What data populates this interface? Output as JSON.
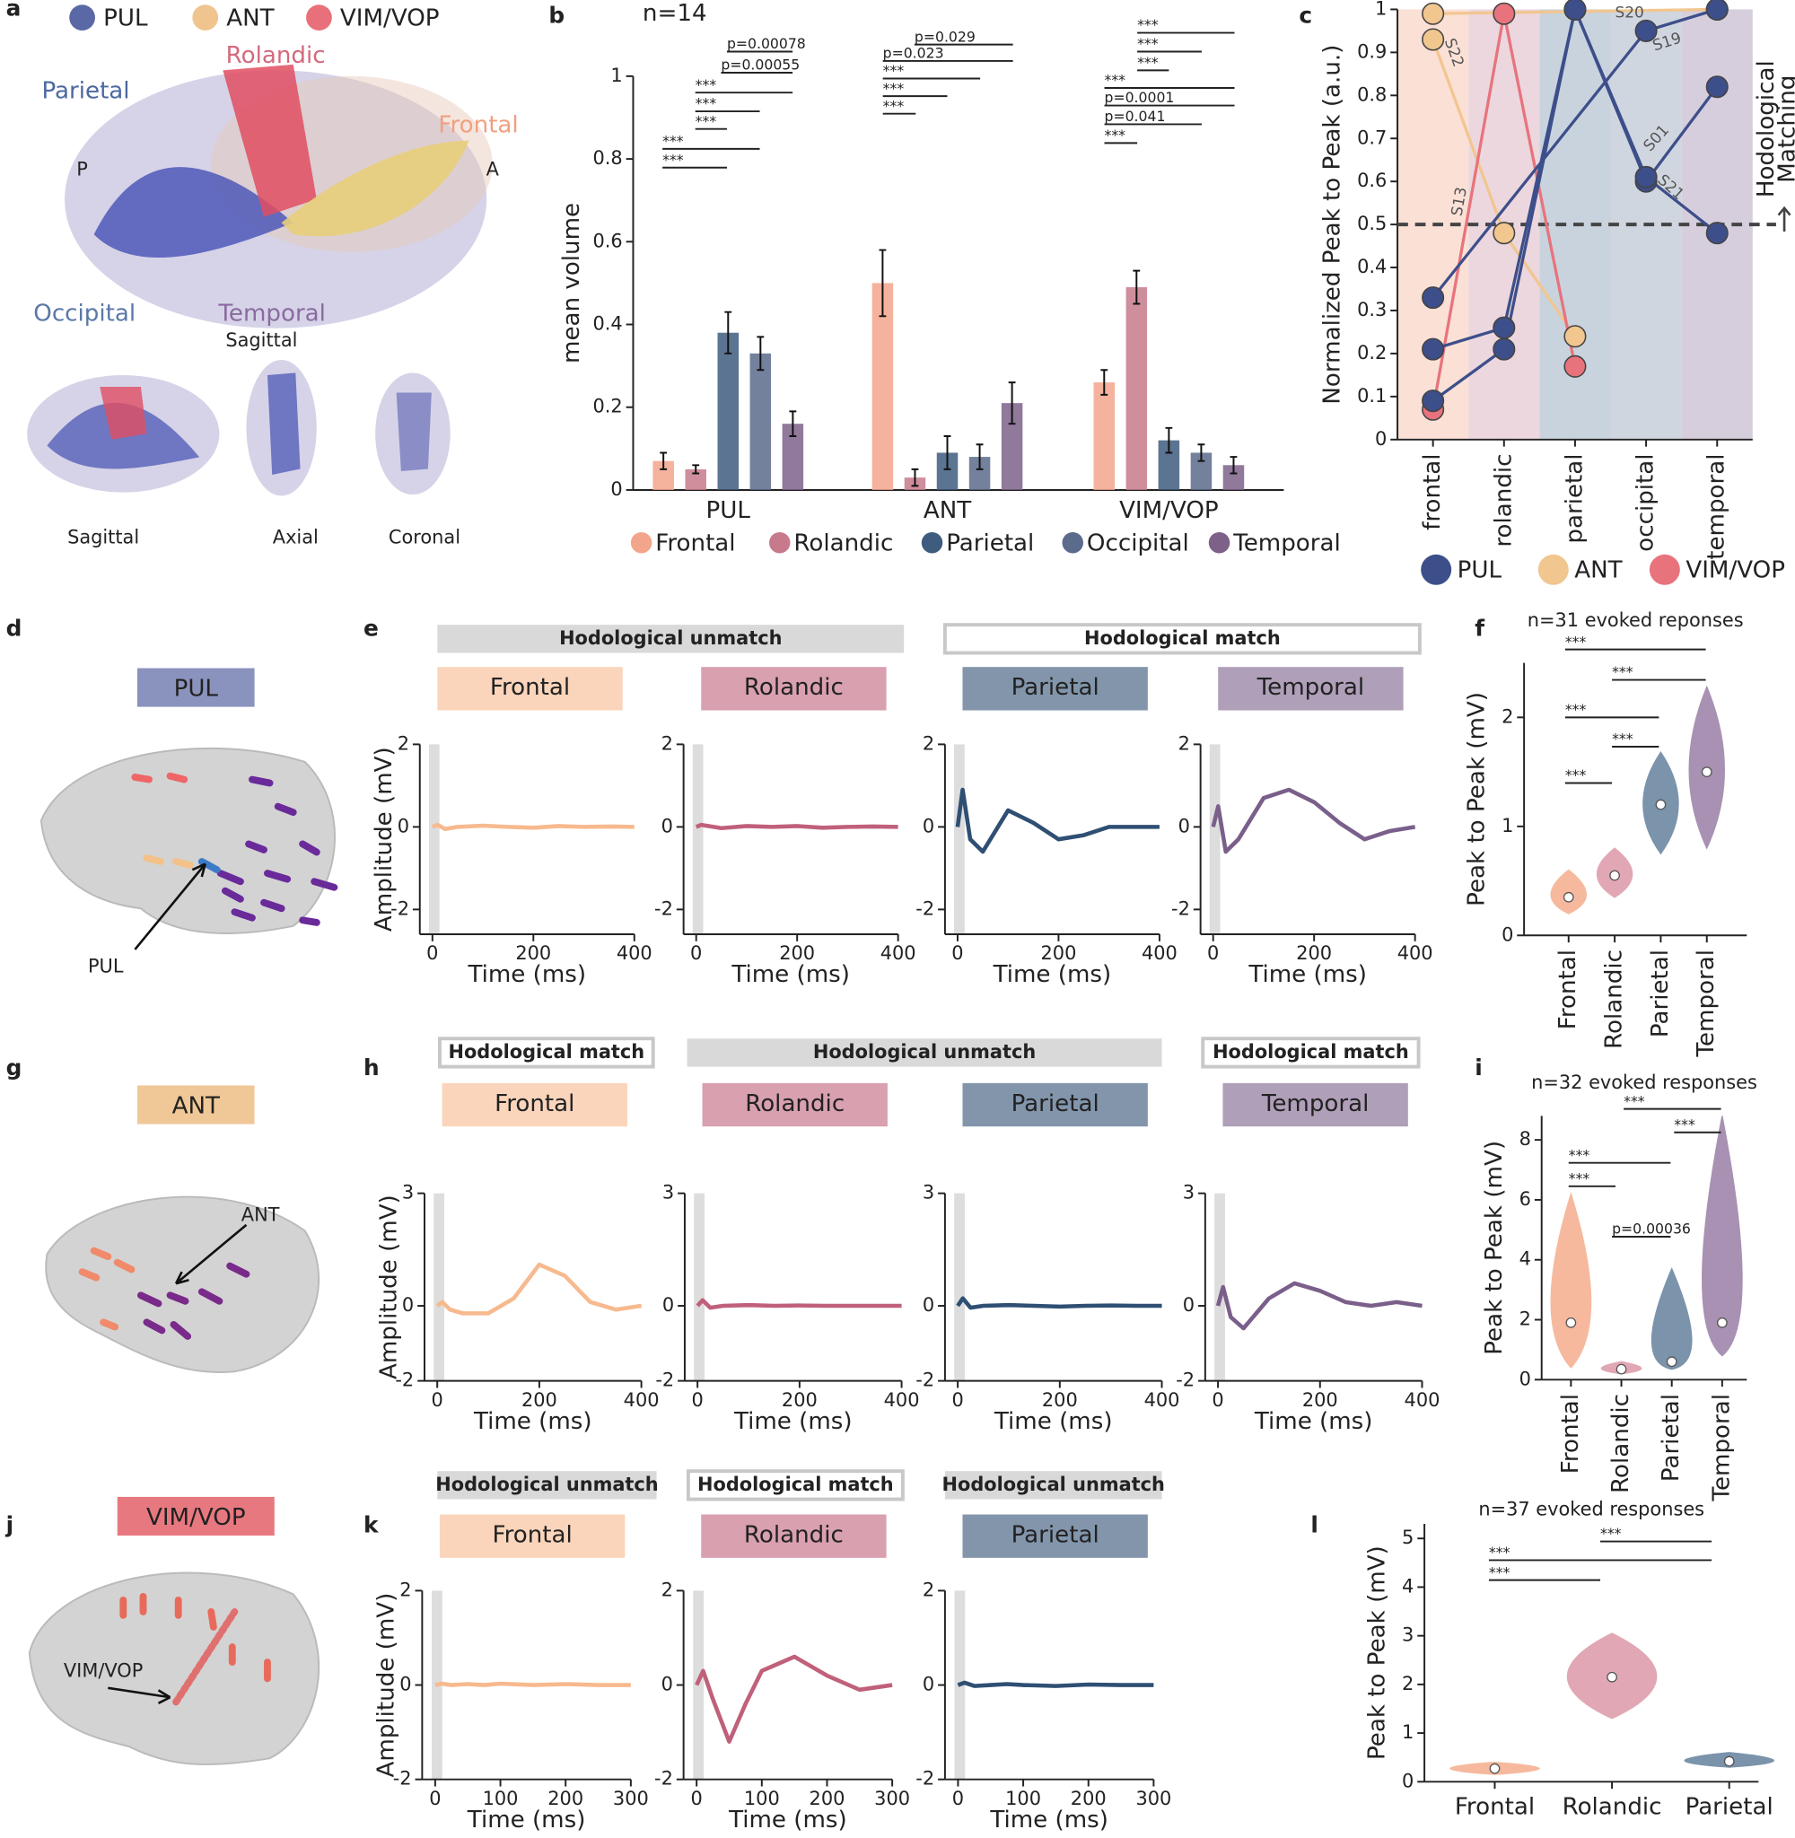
{
  "figure": {
    "letters": [
      "a",
      "b",
      "c",
      "d",
      "e",
      "f",
      "g",
      "h",
      "i",
      "j",
      "k",
      "l"
    ],
    "a": {
      "legend": [
        {
          "name": "PUL",
          "color": "#5b68a6"
        },
        {
          "name": "ANT",
          "color": "#f0c48e"
        },
        {
          "name": "VIM/VOP",
          "color": "#e8707a"
        }
      ],
      "regions": [
        "Rolandic",
        "Parietal",
        "Frontal",
        "Occipital",
        "Temporal"
      ],
      "orient": [
        "P",
        "A"
      ],
      "views": [
        "Sagittal",
        "Sagittal",
        "Axial",
        "Coronal"
      ]
    },
    "d": {
      "nucleus": "PUL",
      "pointer": "PUL"
    },
    "g": {
      "nucleus": "ANT",
      "pointer": "ANT"
    },
    "j": {
      "nucleus": "VIM/VOP",
      "pointer": "VIM/VOP"
    },
    "headers": [
      {
        "text": "Hodological unmatch",
        "match": false
      },
      {
        "text": "Hodological match",
        "match": true
      },
      {
        "text": "Hodological match",
        "match": true
      },
      {
        "text": "Hodological unmatch",
        "match": false
      },
      {
        "text": "Hodological match",
        "match": true
      },
      {
        "text": "Hodological unmatch",
        "match": false
      },
      {
        "text": "Hodological match",
        "match": true
      },
      {
        "text": "Hodological unmatch",
        "match": false
      }
    ]
  },
  "chart_data": [
    {
      "type": "bar",
      "title": "n=14",
      "categories": [
        "PUL",
        "ANT",
        "VIM/VOP"
      ],
      "ylabel": "mean volume",
      "ylim": [
        0,
        1
      ],
      "yticks": [
        0,
        0.2,
        0.4,
        0.6,
        0.8,
        1
      ],
      "series": [
        {
          "name": "Frontal",
          "color": "#f3a58b",
          "values": [
            0.07,
            0.5,
            0.26
          ],
          "errors": [
            0.02,
            0.08,
            0.03
          ]
        },
        {
          "name": "Rolandic",
          "color": "#c77a8b",
          "values": [
            0.05,
            0.03,
            0.49
          ],
          "errors": [
            0.01,
            0.02,
            0.04
          ]
        },
        {
          "name": "Parietal",
          "color": "#3e5c7e",
          "values": [
            0.38,
            0.09,
            0.12
          ],
          "errors": [
            0.05,
            0.04,
            0.03
          ]
        },
        {
          "name": "Occipital",
          "color": "#5b6b8c",
          "values": [
            0.33,
            0.08,
            0.09
          ],
          "errors": [
            0.04,
            0.03,
            0.02
          ]
        },
        {
          "name": "Temporal",
          "color": "#7d6189",
          "values": [
            0.16,
            0.21,
            0.06
          ],
          "errors": [
            0.03,
            0.05,
            0.02
          ]
        }
      ],
      "annotations": [
        "***",
        "***",
        "***",
        "***",
        "***",
        "p=0.00055",
        "p=0.00078",
        "***",
        "***",
        "***",
        "p=0.023",
        "p=0.029",
        "***",
        "p=0.041",
        "p=0.0001",
        "***",
        "***",
        "***",
        "***"
      ]
    },
    {
      "type": "line",
      "ylabel": "Normalized Peak to Peak (a.u.)",
      "xlim": [
        -0.5,
        4.5
      ],
      "xticks": [
        {
          "value": 0,
          "label": "frontal"
        },
        {
          "value": 1,
          "label": "rolandic"
        },
        {
          "value": 2,
          "label": "parietal"
        },
        {
          "value": 3,
          "label": "occipital"
        },
        {
          "value": 4,
          "label": "temporal"
        }
      ],
      "ylim": [
        0,
        1
      ],
      "yticks": [
        0,
        0.1,
        0.2,
        0.3,
        0.4,
        0.5,
        0.6,
        0.7,
        0.8,
        0.9,
        1
      ],
      "bands": [
        "#fbe0d6",
        "#ecd7de",
        "#c9d3dd",
        "#d0d6df",
        "#d6cedd"
      ],
      "threshold": 0.5,
      "threshold_label": [
        "Hodological",
        "Matching"
      ],
      "legend": [
        {
          "name": "PUL",
          "color": "#3d4f8a"
        },
        {
          "name": "ANT",
          "color": "#f1c68f"
        },
        {
          "name": "VIM/VOP",
          "color": "#e8737d"
        }
      ],
      "series": [
        {
          "name": "S22",
          "color": "#f1c68f",
          "x": [
            0,
            1,
            2
          ],
          "values": [
            0.93,
            0.48,
            0.24
          ]
        },
        {
          "name": "S20",
          "color": "#f1c68f",
          "x": [
            0,
            4
          ],
          "values": [
            0.99,
            1
          ]
        },
        {
          "name": "S13",
          "color": "#e8737d",
          "x": [
            0,
            1,
            2
          ],
          "values": [
            0.07,
            0.99,
            0.17
          ]
        },
        {
          "name": "S19",
          "color": "#3d4f8a",
          "x": [
            0,
            3,
            4
          ],
          "values": [
            0.33,
            0.95,
            1
          ]
        },
        {
          "name": "S01",
          "color": "#3d4f8a",
          "x": [
            0,
            1,
            2,
            3,
            4
          ],
          "values": [
            0.21,
            0.26,
            1,
            0.6,
            0.82
          ]
        },
        {
          "name": "S21",
          "color": "#3d4f8a",
          "x": [
            0,
            1,
            2,
            3,
            4
          ],
          "values": [
            0.09,
            0.21,
            1,
            0.61,
            0.48
          ]
        }
      ]
    },
    {
      "type": "violin",
      "title": "n=31 evoked reponses",
      "ylabel": "Peak to Peak (mV)",
      "categories": [
        "Frontal",
        "Rolandic",
        "Parietal",
        "Temporal"
      ],
      "colors": [
        "#f3a27e",
        "#d78a9b",
        "#4f6f8f",
        "#8b6d99"
      ],
      "values": [
        0.35,
        0.55,
        1.2,
        1.5
      ],
      "min": [
        0.2,
        0.35,
        0.75,
        0.8
      ],
      "max": [
        0.6,
        0.8,
        1.68,
        2.28
      ],
      "ylim": [
        0,
        2.5
      ],
      "yticks": [
        0,
        1,
        2
      ],
      "annotations": [
        "***",
        "***",
        "***",
        "***",
        "***"
      ]
    },
    {
      "type": "violin",
      "title": "n=32 evoked responses",
      "ylabel": "Peak to Peak (mV)",
      "categories": [
        "Frontal",
        "Rolandic",
        "Parietal",
        "Temporal"
      ],
      "colors": [
        "#f3a27e",
        "#d78a9b",
        "#4f6f8f",
        "#8b6d99"
      ],
      "values": [
        1.9,
        0.35,
        0.6,
        1.9
      ],
      "min": [
        0.4,
        0.2,
        0.35,
        0.8
      ],
      "max": [
        6.2,
        0.6,
        3.7,
        8.8
      ],
      "ylim": [
        0,
        8.8
      ],
      "yticks": [
        0,
        2,
        4,
        6,
        8
      ],
      "annotations": [
        "***",
        "***",
        "***",
        "***",
        "p=0.00036"
      ]
    },
    {
      "type": "violin",
      "title": "n=37 evoked responses",
      "ylabel": "Peak to Peak (mV)",
      "categories": [
        "Frontal",
        "Rolandic",
        "Parietal"
      ],
      "colors": [
        "#f3a27e",
        "#d78a9b",
        "#4f6f8f"
      ],
      "values": [
        0.27,
        2.15,
        0.42
      ],
      "min": [
        0.15,
        1.3,
        0.3
      ],
      "max": [
        0.4,
        3.05,
        0.6
      ],
      "ylim": [
        0,
        5.3
      ],
      "yticks": [
        0,
        1,
        2,
        3,
        4,
        5
      ],
      "annotations": [
        "***",
        "***",
        "***"
      ]
    },
    {
      "type": "line",
      "title": "Frontal",
      "color": "#f7b98e",
      "x": [
        0,
        10,
        25,
        50,
        100,
        150,
        200,
        250,
        300,
        350,
        400
      ],
      "values": [
        0,
        0.05,
        -0.05,
        0,
        0.03,
        0,
        -0.02,
        0.02,
        0,
        0.01,
        0
      ],
      "xlim": [
        -25,
        400
      ],
      "xticks": [
        0,
        200,
        400
      ],
      "ylim": [
        -2.6,
        2
      ],
      "yticks": [
        -2,
        0,
        2
      ],
      "xlabel": "Time (ms)",
      "ylabel": "Amplitude (mV)"
    },
    {
      "type": "line",
      "title": "Rolandic",
      "color": "#c0607a",
      "x": [
        0,
        10,
        25,
        50,
        100,
        150,
        200,
        250,
        300,
        350,
        400
      ],
      "values": [
        0,
        0.05,
        0.02,
        -0.03,
        0.02,
        0,
        0.02,
        -0.02,
        0,
        0.01,
        0
      ],
      "xlim": [
        -25,
        400
      ],
      "xticks": [
        0,
        200,
        400
      ],
      "ylim": [
        -2.6,
        2
      ],
      "yticks": [
        -2,
        0,
        2
      ],
      "xlabel": "Time (ms)"
    },
    {
      "type": "line",
      "title": "Parietal",
      "color": "#2f4f73",
      "x": [
        0,
        10,
        25,
        50,
        100,
        150,
        200,
        250,
        300,
        350,
        400
      ],
      "values": [
        0,
        0.9,
        -0.3,
        -0.6,
        0.4,
        0.1,
        -0.3,
        -0.2,
        0,
        0,
        0
      ],
      "xlim": [
        -25,
        400
      ],
      "xticks": [
        0,
        200,
        400
      ],
      "ylim": [
        -2.6,
        2
      ],
      "yticks": [
        -2,
        0,
        2
      ],
      "xlabel": "Time (ms)"
    },
    {
      "type": "line",
      "title": "Temporal",
      "color": "#7a5f8a",
      "x": [
        0,
        10,
        25,
        50,
        100,
        150,
        200,
        250,
        300,
        350,
        400
      ],
      "values": [
        0,
        0.5,
        -0.6,
        -0.3,
        0.7,
        0.9,
        0.6,
        0.1,
        -0.3,
        -0.1,
        0
      ],
      "xlim": [
        -25,
        400
      ],
      "xticks": [
        0,
        200,
        400
      ],
      "ylim": [
        -2.6,
        2
      ],
      "yticks": [
        -2,
        0,
        2
      ],
      "xlabel": "Time (ms)"
    },
    {
      "type": "line",
      "title": "Frontal",
      "color": "#f7b98e",
      "x": [
        0,
        10,
        25,
        50,
        100,
        150,
        200,
        250,
        300,
        350,
        400
      ],
      "values": [
        0,
        0.1,
        -0.1,
        -0.2,
        -0.2,
        0.2,
        1.1,
        0.8,
        0.1,
        -0.1,
        0
      ],
      "xlim": [
        -25,
        400
      ],
      "xticks": [
        0,
        200,
        400
      ],
      "ylim": [
        -2,
        3
      ],
      "yticks": [
        -2,
        0,
        3
      ],
      "xlabel": "Time (ms)",
      "ylabel": "Amplitude (mV)"
    },
    {
      "type": "line",
      "title": "Rolandic",
      "color": "#c0607a",
      "x": [
        0,
        10,
        25,
        50,
        100,
        150,
        200,
        250,
        300,
        350,
        400
      ],
      "values": [
        0,
        0.15,
        -0.05,
        0,
        0.02,
        0,
        0.01,
        0,
        0,
        0,
        0
      ],
      "xlim": [
        -25,
        400
      ],
      "xticks": [
        0,
        200,
        400
      ],
      "ylim": [
        -2,
        3
      ],
      "yticks": [
        -2,
        0,
        3
      ],
      "xlabel": "Time (ms)"
    },
    {
      "type": "line",
      "title": "Parietal",
      "color": "#2f4f73",
      "x": [
        0,
        10,
        25,
        50,
        100,
        150,
        200,
        250,
        300,
        350,
        400
      ],
      "values": [
        0,
        0.2,
        -0.05,
        0,
        0.02,
        0,
        -0.02,
        0,
        0.01,
        0,
        0
      ],
      "xlim": [
        -25,
        400
      ],
      "xticks": [
        0,
        200,
        400
      ],
      "ylim": [
        -2,
        3
      ],
      "yticks": [
        -2,
        0,
        3
      ],
      "xlabel": "Time (ms)"
    },
    {
      "type": "line",
      "title": "Temporal",
      "color": "#7a5f8a",
      "x": [
        0,
        10,
        25,
        50,
        100,
        150,
        200,
        250,
        300,
        350,
        400
      ],
      "values": [
        0,
        0.5,
        -0.3,
        -0.6,
        0.2,
        0.6,
        0.4,
        0.1,
        0,
        0.1,
        0
      ],
      "xlim": [
        -25,
        400
      ],
      "xticks": [
        0,
        200,
        400
      ],
      "ylim": [
        -2,
        3
      ],
      "yticks": [
        -2,
        0,
        3
      ],
      "xlabel": "Time (ms)"
    },
    {
      "type": "line",
      "title": "Frontal",
      "color": "#f7b98e",
      "x": [
        0,
        10,
        25,
        50,
        75,
        100,
        150,
        200,
        250,
        300
      ],
      "values": [
        0,
        0.03,
        0,
        0.02,
        0,
        0.03,
        0,
        0.02,
        0,
        0
      ],
      "xlim": [
        -20,
        300
      ],
      "xticks": [
        0,
        100,
        200,
        300
      ],
      "ylim": [
        -2,
        2
      ],
      "yticks": [
        -2,
        0,
        2
      ],
      "xlabel": "Time (ms)",
      "ylabel": "Amplitude (mV)"
    },
    {
      "type": "line",
      "title": "Rolandic",
      "color": "#c0607a",
      "x": [
        0,
        10,
        25,
        50,
        75,
        100,
        150,
        200,
        250,
        300
      ],
      "values": [
        0,
        0.3,
        -0.3,
        -1.2,
        -0.4,
        0.3,
        0.6,
        0.2,
        -0.1,
        0
      ],
      "xlim": [
        -20,
        300
      ],
      "xticks": [
        0,
        100,
        200,
        300
      ],
      "ylim": [
        -2,
        2
      ],
      "yticks": [
        -2,
        0,
        2
      ],
      "xlabel": "Time (ms)"
    },
    {
      "type": "line",
      "title": "Parietal",
      "color": "#2f4f73",
      "x": [
        0,
        10,
        25,
        50,
        75,
        100,
        150,
        200,
        250,
        300
      ],
      "values": [
        0,
        0.05,
        -0.02,
        0,
        0.02,
        0,
        -0.02,
        0.01,
        0,
        0
      ],
      "xlim": [
        -20,
        300
      ],
      "xticks": [
        0,
        100,
        200,
        300
      ],
      "ylim": [
        -2,
        2
      ],
      "yticks": [
        -2,
        0,
        2
      ],
      "xlabel": "Time (ms)"
    }
  ]
}
